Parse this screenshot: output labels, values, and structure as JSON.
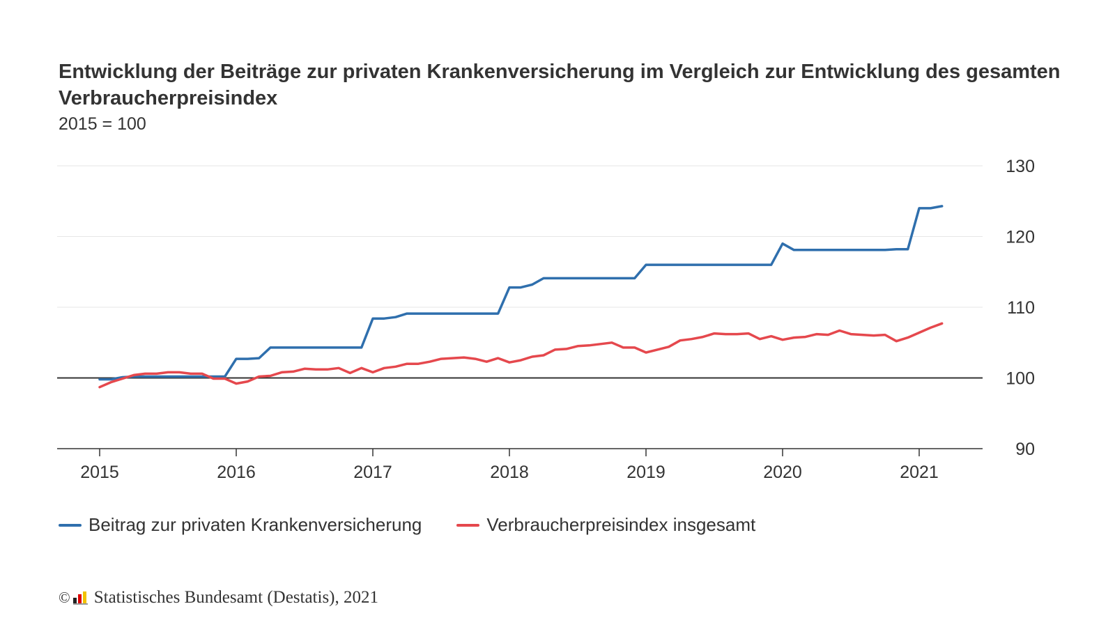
{
  "header": {
    "title": "Entwicklung der Beiträge zur privaten Krankenversicherung im Vergleich zur Entwicklung des gesamten Verbraucherpreisindex",
    "subtitle": "2015 = 100"
  },
  "footer": {
    "copyright_symbol": "©",
    "source": "Statistisches Bundesamt (Destatis), 2021"
  },
  "colors": {
    "pkv": "#2f6fad",
    "vpi": "#e5484d",
    "baseline": "#333333",
    "grid": "#e6e6e6"
  },
  "chart_data": {
    "type": "line",
    "title": "Entwicklung der Beiträge zur privaten Krankenversicherung im Vergleich zur Entwicklung des gesamten Verbraucherpreisindex",
    "subtitle": "2015 = 100",
    "xlabel": "",
    "ylabel": "",
    "x_start": "2015-01",
    "x_tick_labels": [
      "2015",
      "2016",
      "2017",
      "2018",
      "2019",
      "2020",
      "2021"
    ],
    "y_ticks": [
      90,
      100,
      110,
      120,
      130
    ],
    "ylim": [
      90,
      130
    ],
    "baseline": 100,
    "legend_position": "bottom-left",
    "series": [
      {
        "name": "Beitrag zur privaten Krankenversicherung",
        "color": "#2f6fad",
        "values": [
          99.8,
          99.8,
          100.1,
          100.2,
          100.2,
          100.2,
          100.2,
          100.2,
          100.2,
          100.2,
          100.2,
          100.2,
          102.7,
          102.7,
          102.8,
          104.3,
          104.3,
          104.3,
          104.3,
          104.3,
          104.3,
          104.3,
          104.3,
          104.3,
          108.4,
          108.4,
          108.6,
          109.1,
          109.1,
          109.1,
          109.1,
          109.1,
          109.1,
          109.1,
          109.1,
          109.1,
          112.8,
          112.8,
          113.2,
          114.1,
          114.1,
          114.1,
          114.1,
          114.1,
          114.1,
          114.1,
          114.1,
          114.1,
          116.0,
          116.0,
          116.0,
          116.0,
          116.0,
          116.0,
          116.0,
          116.0,
          116.0,
          116.0,
          116.0,
          116.0,
          119.0,
          118.1,
          118.1,
          118.1,
          118.1,
          118.1,
          118.1,
          118.1,
          118.1,
          118.1,
          118.2,
          118.2,
          124.0,
          124.0,
          124.3
        ]
      },
      {
        "name": "Verbraucherpreisindex insgesamt",
        "color": "#e5484d",
        "values": [
          98.7,
          99.4,
          99.9,
          100.4,
          100.6,
          100.6,
          100.8,
          100.8,
          100.6,
          100.6,
          99.9,
          99.9,
          99.2,
          99.5,
          100.2,
          100.3,
          100.8,
          100.9,
          101.3,
          101.2,
          101.2,
          101.4,
          100.7,
          101.4,
          100.8,
          101.4,
          101.6,
          102.0,
          102.0,
          102.3,
          102.7,
          102.8,
          102.9,
          102.7,
          102.3,
          102.8,
          102.2,
          102.5,
          103.0,
          103.2,
          104.0,
          104.1,
          104.5,
          104.6,
          104.8,
          105.0,
          104.3,
          104.3,
          103.6,
          104.0,
          104.4,
          105.3,
          105.5,
          105.8,
          106.3,
          106.2,
          106.2,
          106.3,
          105.5,
          105.9,
          105.4,
          105.7,
          105.8,
          106.2,
          106.1,
          106.7,
          106.2,
          106.1,
          106.0,
          106.1,
          105.2,
          105.7,
          106.4,
          107.1,
          107.7
        ]
      }
    ]
  }
}
